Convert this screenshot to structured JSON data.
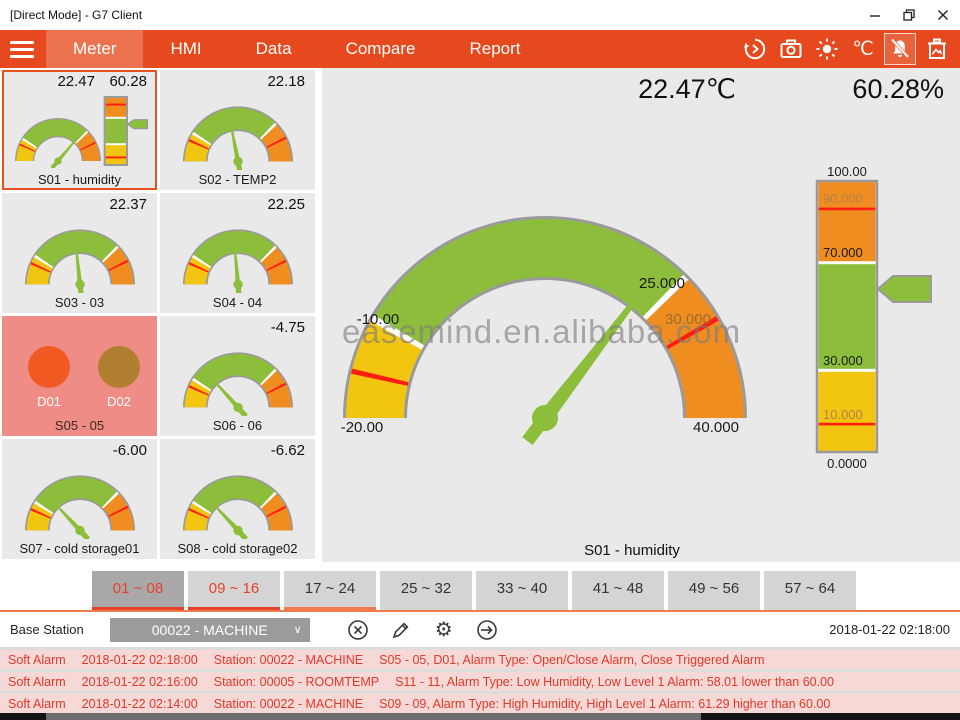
{
  "window": {
    "title": "[Direct Mode] - G7 Client"
  },
  "nav": {
    "items": [
      "Meter",
      "HMI",
      "Data",
      "Compare",
      "Report"
    ],
    "active": "Meter",
    "celsius": "℃",
    "accent_color": "#E5491D",
    "active_bg": "#ED7350"
  },
  "meters": [
    {
      "label": "S01 - humidity",
      "value": "22.47",
      "value2": "60.28",
      "needle_deg": 50,
      "bar_percent": 60.28,
      "selected": true
    },
    {
      "label": "S02 - TEMP2",
      "value": "22.18",
      "needle_deg": 101
    },
    {
      "label": "S03 - 03",
      "value": "22.37",
      "needle_deg": 96
    },
    {
      "label": "S04 - 04",
      "value": "22.25",
      "needle_deg": 95
    },
    {
      "label": "S05 - 05",
      "type": "digital",
      "d1": "D01",
      "d2": "D02"
    },
    {
      "label": "S06 - 06",
      "value": "-4.75",
      "needle_deg": 132
    },
    {
      "label": "S07 - cold storage01",
      "value": "-6.00",
      "needle_deg": 133
    },
    {
      "label": "S08 - cold storage02",
      "value": "-6.62",
      "needle_deg": 133
    }
  ],
  "main": {
    "temp_readout": "22.47℃",
    "hum_readout": "60.28%",
    "caption": "S01 - humidity",
    "watermark": "easemind.en.alibaba.com",
    "gauge_labels": {
      "min": "-20.00",
      "low": "-10.00",
      "high": "25.000",
      "alarm": "30.000",
      "max": "40.000"
    },
    "bar_labels": {
      "p100": "100.00",
      "p90": "90.000",
      "p70": "70.000",
      "p30": "30.000",
      "p10": "10.000",
      "p0": "0.0000"
    }
  },
  "chart_data": [
    {
      "type": "gauge",
      "title": "S01 - humidity (temperature)",
      "value": 22.47,
      "units": "℃",
      "min": -20,
      "max": 40,
      "zones": [
        {
          "from": -20,
          "to": -10,
          "color": "#F2C511"
        },
        {
          "from": -10,
          "to": 25,
          "color": "#8CBE3B"
        },
        {
          "from": 25,
          "to": 40,
          "color": "#EF8D20"
        }
      ],
      "alarm_lines": [
        {
          "value": -16,
          "color": "#FF1E0F"
        },
        {
          "value": 30,
          "color": "#FF1E0F"
        }
      ],
      "tick_labels": [
        "-20.00",
        "-10.00",
        "25.000",
        "30.000",
        "40.000"
      ],
      "needle_deg": 52.6
    },
    {
      "type": "bar",
      "title": "S01 - humidity (%)",
      "value": 60.28,
      "units": "%",
      "min": 0,
      "max": 100,
      "zones": [
        {
          "from": 0,
          "to": 30,
          "color": "#F2C511"
        },
        {
          "from": 30,
          "to": 70,
          "color": "#8CBE3B"
        },
        {
          "from": 70,
          "to": 100,
          "color": "#EF8D20"
        }
      ],
      "alarm_lines": [
        {
          "value": 10,
          "color": "#FF1E0F"
        },
        {
          "value": 90,
          "color": "#FF1E0F"
        }
      ],
      "tick_labels": [
        "0.0000",
        "10.000",
        "30.000",
        "70.000",
        "90.000",
        "100.00"
      ]
    }
  ],
  "tabs": [
    {
      "label": "01 ~ 08"
    },
    {
      "label": "09 ~ 16"
    },
    {
      "label": "17 ~ 24"
    },
    {
      "label": "25 ~ 32"
    },
    {
      "label": "33 ~ 40"
    },
    {
      "label": "41 ~ 48"
    },
    {
      "label": "49 ~ 56"
    },
    {
      "label": "57 ~ 64"
    }
  ],
  "station_bar": {
    "label": "Base Station",
    "selected": "00022 - MACHINE",
    "timestamp": "2018-01-22 02:18:00"
  },
  "alarms": [
    {
      "type": "Soft Alarm",
      "time": "2018-01-22 02:18:00",
      "station": "Station: 00022 - MACHINE",
      "message": "S05 - 05, D01, Alarm Type: Open/Close Alarm, Close Triggered Alarm"
    },
    {
      "type": "Soft Alarm",
      "time": "2018-01-22 02:16:00",
      "station": "Station: 00005 - ROOMTEMP",
      "message": "S11 - 11, Alarm Type: Low Humidity, Low Level 1 Alarm: 58.01 lower than 60.00"
    },
    {
      "type": "Soft Alarm",
      "time": "2018-01-22 02:14:00",
      "station": "Station: 00022 - MACHINE",
      "message": "S09 - 09, Alarm Type: High Humidity, High Level 1 Alarm: 61.29 higher than 60.00"
    }
  ]
}
